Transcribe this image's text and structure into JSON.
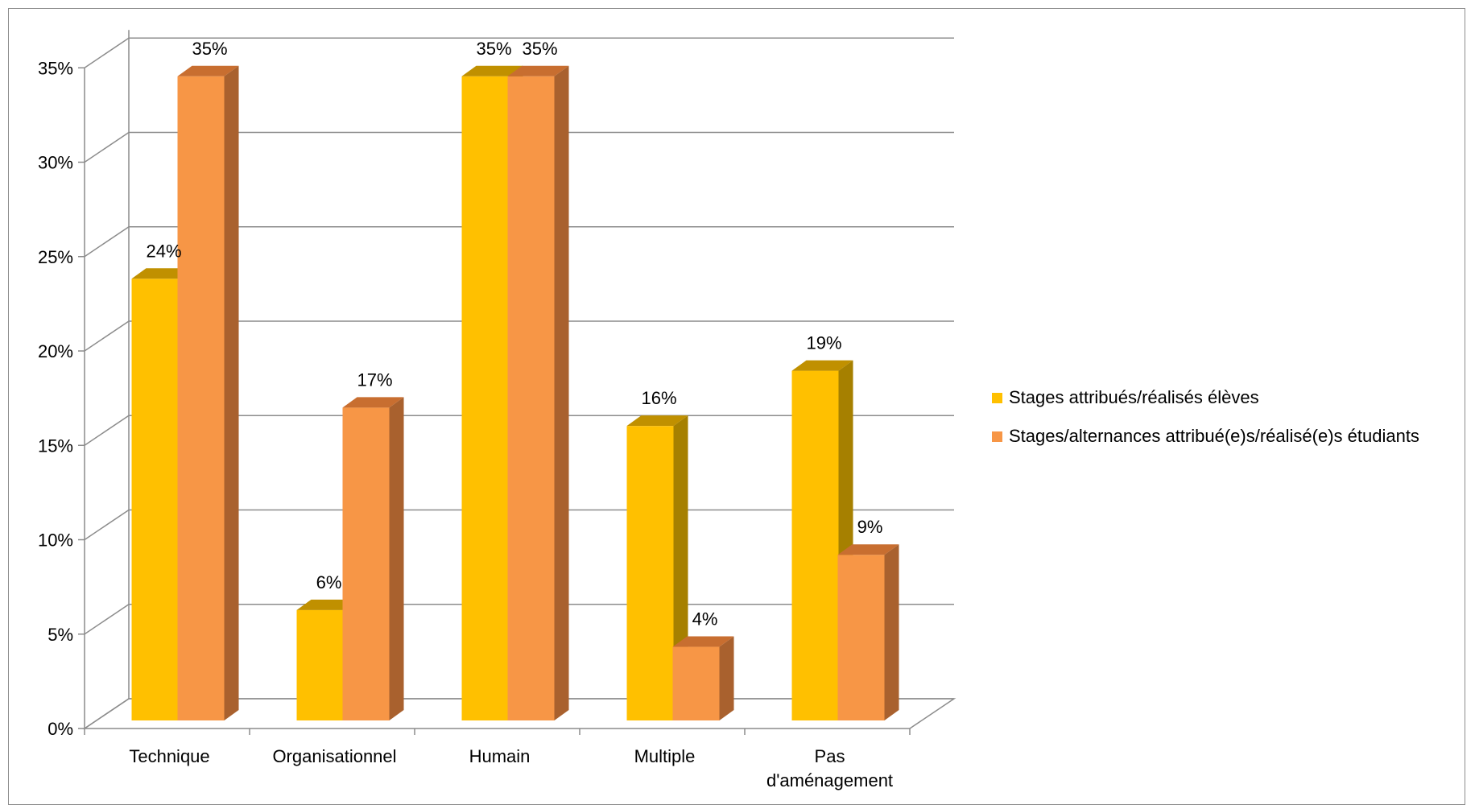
{
  "chart_data": {
    "type": "bar",
    "categories": [
      "Technique",
      "Organisationnel",
      "Humain",
      "Multiple",
      "Pas d'aménagement"
    ],
    "category_lines": [
      [
        "Technique"
      ],
      [
        "Organisationnel"
      ],
      [
        "Humain"
      ],
      [
        "Multiple"
      ],
      [
        "Pas",
        "d'aménagement"
      ]
    ],
    "series": [
      {
        "name": "Stages attribués/réalisés élèves",
        "values": [
          24,
          6,
          35,
          16,
          19
        ],
        "labels": [
          "24%",
          "6%",
          "35%",
          "16%",
          "19%"
        ],
        "color": "#FFC000",
        "top_color": "#C09000",
        "side_color": "#A68000"
      },
      {
        "name": "Stages/alternances attribué(e)s/réalisé(e)s étudiants",
        "values": [
          35,
          17,
          35,
          4,
          9
        ],
        "labels": [
          "35%",
          "17%",
          "35%",
          "4%",
          "9%"
        ],
        "color": "#F79646",
        "top_color": "#C86E30",
        "side_color": "#A9612E"
      }
    ],
    "y_ticks": [
      0,
      5,
      10,
      15,
      20,
      25,
      30,
      35
    ],
    "y_tick_labels": [
      "0%",
      "5%",
      "10%",
      "15%",
      "20%",
      "25%",
      "30%",
      "35%"
    ],
    "ylim": [
      0,
      35
    ],
    "title": "",
    "xlabel": "",
    "ylabel": "",
    "grid": true,
    "legend_position": "right",
    "three_d": true
  }
}
